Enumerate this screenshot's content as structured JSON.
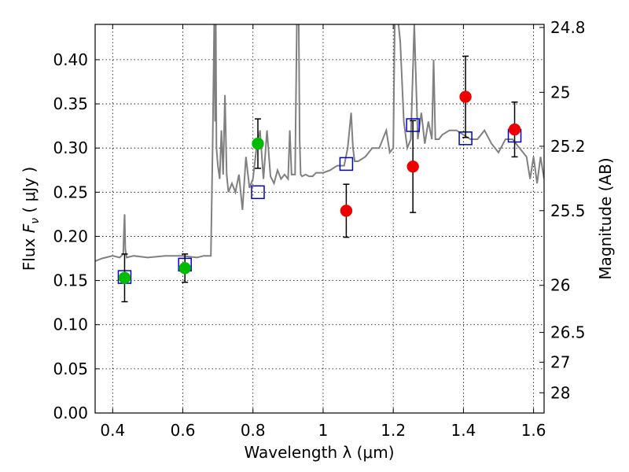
{
  "chart_data": {
    "type": "scatter",
    "xlabel": "Wavelength  λ (μm)",
    "ylabel": "Flux  F_ν  ( μJy )",
    "ylabel_parts": {
      "prefix": "Flux  ",
      "symbol": "F",
      "subscript": "ν",
      "suffix": "  ( μJy )"
    },
    "y2label": "Magnitude (AB)",
    "xlim": [
      0.35,
      1.63
    ],
    "ylim": [
      0.0,
      0.44
    ],
    "grid": true,
    "x_ticks": [
      0.4,
      0.6,
      0.8,
      1.0,
      1.2,
      1.4,
      1.6
    ],
    "x_tick_labels": [
      "0.4",
      "0.6",
      "0.8",
      "1",
      "1.2",
      "1.4",
      "1.6"
    ],
    "y_ticks": [
      0.0,
      0.05,
      0.1,
      0.15,
      0.2,
      0.25,
      0.3,
      0.35,
      0.4
    ],
    "y_tick_labels": [
      "0.00",
      "0.05",
      "0.10",
      "0.15",
      "0.20",
      "0.25",
      "0.30",
      "0.35",
      "0.40"
    ],
    "mag_ticks": [
      24.8,
      25,
      25.2,
      25.5,
      26,
      26.5,
      27,
      28
    ],
    "mag_tick_labels": [
      "24.8",
      "25",
      "25.2",
      "25.5",
      "26",
      "26.5",
      "27",
      "28"
    ],
    "colors": {
      "spectrum": "#808080",
      "green_points": "#00bb00",
      "red_points": "#ee0000",
      "model_squares": "#0000cc",
      "errorbars": "#000000"
    },
    "series": [
      {
        "name": "model spectrum",
        "kind": "line",
        "x": [
          0.35,
          0.37,
          0.4,
          0.42,
          0.43,
          0.432,
          0.434,
          0.436,
          0.44,
          0.46,
          0.5,
          0.55,
          0.6,
          0.64,
          0.66,
          0.68,
          0.685,
          0.69,
          0.692,
          0.694,
          0.696,
          0.7,
          0.705,
          0.71,
          0.715,
          0.72,
          0.725,
          0.73,
          0.74,
          0.75,
          0.76,
          0.77,
          0.78,
          0.79,
          0.8,
          0.81,
          0.82,
          0.83,
          0.84,
          0.85,
          0.86,
          0.87,
          0.88,
          0.89,
          0.9,
          0.905,
          0.91,
          0.92,
          0.925,
          0.93,
          0.933,
          0.936,
          0.94,
          0.95,
          0.96,
          0.97,
          0.98,
          1.0,
          1.02,
          1.04,
          1.06,
          1.07,
          1.08,
          1.085,
          1.09,
          1.1,
          1.12,
          1.14,
          1.16,
          1.18,
          1.19,
          1.2,
          1.205,
          1.21,
          1.22,
          1.23,
          1.24,
          1.25,
          1.26,
          1.27,
          1.28,
          1.29,
          1.3,
          1.31,
          1.315,
          1.32,
          1.33,
          1.34,
          1.36,
          1.38,
          1.4,
          1.42,
          1.44,
          1.46,
          1.48,
          1.5,
          1.52,
          1.54,
          1.56,
          1.58,
          1.59,
          1.6,
          1.61,
          1.62,
          1.63
        ],
        "y": [
          0.172,
          0.175,
          0.178,
          0.176,
          0.18,
          0.205,
          0.225,
          0.185,
          0.176,
          0.178,
          0.176,
          0.178,
          0.178,
          0.176,
          0.178,
          0.178,
          0.3,
          0.46,
          0.33,
          0.44,
          0.3,
          0.28,
          0.265,
          0.32,
          0.27,
          0.36,
          0.27,
          0.25,
          0.26,
          0.25,
          0.27,
          0.23,
          0.29,
          0.255,
          0.265,
          0.3,
          0.32,
          0.265,
          0.32,
          0.268,
          0.26,
          0.275,
          0.265,
          0.27,
          0.265,
          0.32,
          0.27,
          0.27,
          0.44,
          0.47,
          0.31,
          0.27,
          0.268,
          0.27,
          0.268,
          0.268,
          0.272,
          0.272,
          0.275,
          0.28,
          0.28,
          0.3,
          0.34,
          0.3,
          0.285,
          0.285,
          0.29,
          0.3,
          0.3,
          0.32,
          0.295,
          0.3,
          0.47,
          0.46,
          0.42,
          0.33,
          0.3,
          0.31,
          0.44,
          0.31,
          0.34,
          0.305,
          0.33,
          0.31,
          0.4,
          0.31,
          0.31,
          0.315,
          0.32,
          0.32,
          0.315,
          0.31,
          0.31,
          0.32,
          0.305,
          0.295,
          0.31,
          0.31,
          0.3,
          0.29,
          0.265,
          0.29,
          0.26,
          0.29,
          0.265
        ]
      },
      {
        "name": "green photometry",
        "kind": "points",
        "points": [
          {
            "x": 0.434,
            "y": 0.153,
            "err": 0.027
          },
          {
            "x": 0.606,
            "y": 0.164,
            "err": 0.016
          },
          {
            "x": 0.814,
            "y": 0.305,
            "err": 0.028
          }
        ]
      },
      {
        "name": "red photometry",
        "kind": "points",
        "points": [
          {
            "x": 1.066,
            "y": 0.229,
            "err": 0.03
          },
          {
            "x": 1.256,
            "y": 0.279,
            "err": 0.052
          },
          {
            "x": 1.406,
            "y": 0.358,
            "err": 0.046
          },
          {
            "x": 1.546,
            "y": 0.321,
            "err": 0.031
          }
        ]
      },
      {
        "name": "model band fluxes",
        "kind": "squares",
        "points": [
          {
            "x": 0.434,
            "y": 0.154
          },
          {
            "x": 0.606,
            "y": 0.168
          },
          {
            "x": 0.814,
            "y": 0.25
          },
          {
            "x": 1.066,
            "y": 0.282
          },
          {
            "x": 1.256,
            "y": 0.326
          },
          {
            "x": 1.406,
            "y": 0.311
          },
          {
            "x": 1.546,
            "y": 0.314
          }
        ]
      }
    ]
  }
}
